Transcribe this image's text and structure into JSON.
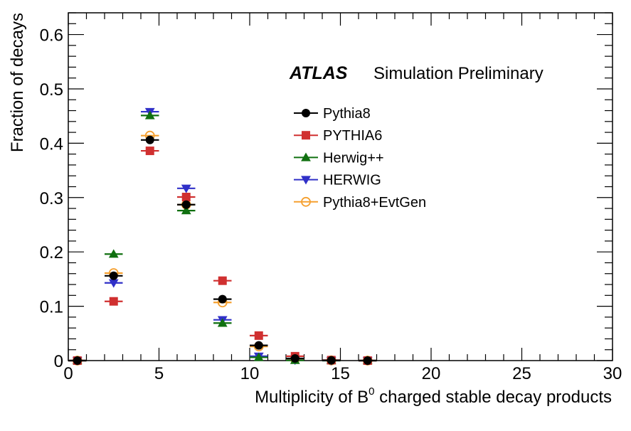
{
  "chart_data": {
    "type": "scatter",
    "experiment": "ATLAS",
    "tag": "Simulation Preliminary",
    "xlabel_prefix": "Multiplicity of B",
    "xlabel_sup": "0",
    "xlabel_suffix": " charged stable decay products",
    "ylabel": "Fraction of decays",
    "xlim": [
      0,
      30
    ],
    "ylim": [
      0,
      0.64
    ],
    "xticks": [
      0,
      5,
      10,
      15,
      20,
      25,
      30
    ],
    "xtick_labels": [
      "0",
      "5",
      "10",
      "15",
      "20",
      "25",
      "30"
    ],
    "yticks": [
      0,
      0.1,
      0.2,
      0.3,
      0.4,
      0.5,
      0.6
    ],
    "ytick_labels": [
      "0",
      "0.1",
      "0.2",
      "0.3",
      "0.4",
      "0.5",
      "0.6"
    ],
    "x": [
      0.5,
      2.5,
      4.5,
      6.5,
      8.5,
      10.5,
      12.5,
      14.5,
      16.5
    ],
    "legend_position": "upper-right",
    "series": [
      {
        "name": "Pythia8",
        "color": "#000000",
        "marker": "circle",
        "values": [
          0.0,
          0.156,
          0.406,
          0.287,
          0.113,
          0.028,
          0.004,
          0.0005,
          0.0
        ]
      },
      {
        "name": "PYTHIA6",
        "color": "#d03030",
        "marker": "square",
        "values": [
          0.0,
          0.109,
          0.386,
          0.301,
          0.147,
          0.046,
          0.008,
          0.0008,
          0.0
        ]
      },
      {
        "name": "Herwig++",
        "color": "#107010",
        "marker": "triangle-up",
        "values": [
          0.0,
          0.196,
          0.451,
          0.276,
          0.069,
          0.006,
          0.0005,
          0.0,
          0.0
        ]
      },
      {
        "name": "HERWIG",
        "color": "#3030c8",
        "marker": "triangle-down",
        "values": [
          0.0,
          0.143,
          0.458,
          0.317,
          0.075,
          0.008,
          0.0008,
          0.0,
          0.0
        ]
      },
      {
        "name": "Pythia8+EvtGen",
        "color": "#f5a030",
        "marker": "open-circle",
        "values": [
          0.0,
          0.161,
          0.414,
          0.287,
          0.107,
          0.026,
          0.003,
          0.0004,
          0.0
        ]
      }
    ]
  }
}
